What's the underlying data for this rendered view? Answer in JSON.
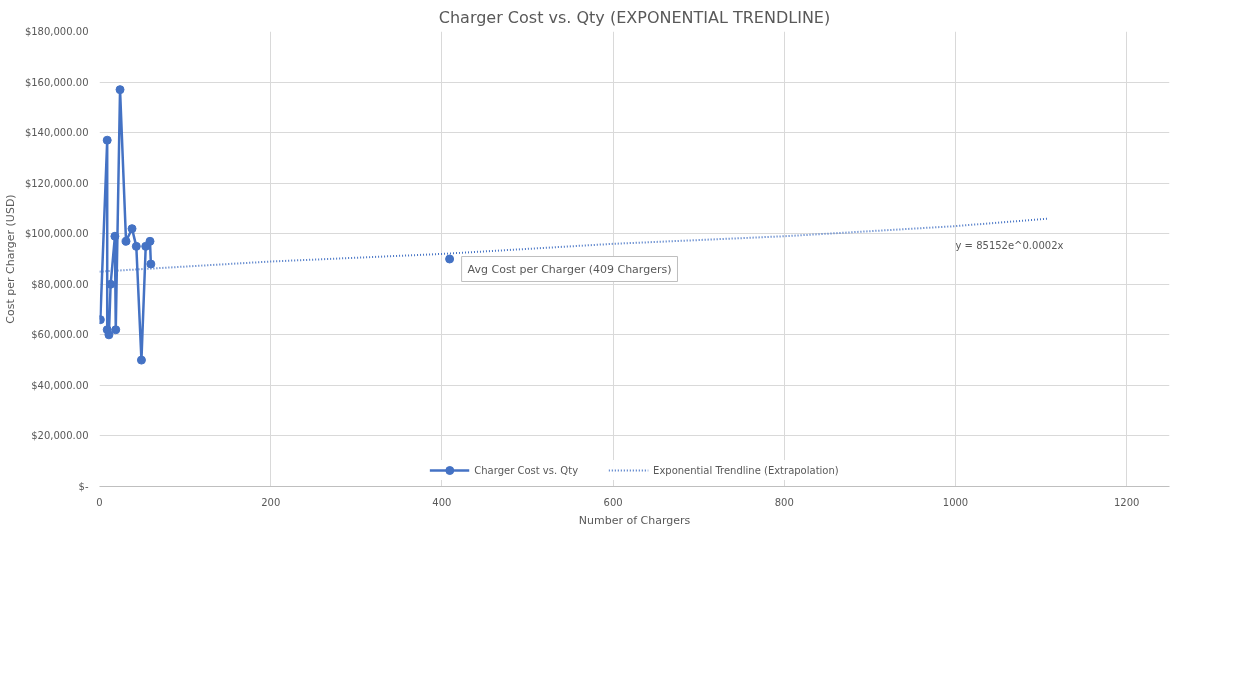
{
  "chart_data": {
    "type": "line",
    "title": "Charger Cost vs. Qty (EXPONENTIAL TRENDLINE)",
    "xlabel": "Number of Chargers",
    "ylabel": "Cost per Charger (USD)",
    "series": [
      {
        "name": "Charger Cost vs. Qty",
        "color": "#4472c4",
        "marker": "circle",
        "line_style": "solid",
        "x": [
          1,
          9,
          9,
          11,
          13,
          18,
          19,
          24,
          31,
          38,
          43,
          49,
          54,
          59,
          60
        ],
        "values": [
          66000,
          137000,
          62000,
          60000,
          80000,
          99000,
          62000,
          157000,
          97000,
          102000,
          95000,
          50000,
          95000,
          97000,
          88000
        ]
      },
      {
        "type": "scatter",
        "color": "#4472c4",
        "marker": "circle",
        "x": [
          409
        ],
        "values": [
          90000
        ]
      },
      {
        "name": "Exponential Trendline (Extrapolation)",
        "color": "#4472c4",
        "marker": "none",
        "line_style": "dotted",
        "x": [
          0,
          200,
          400,
          600,
          800,
          1000,
          1109
        ],
        "values": [
          85000,
          89000,
          92000,
          96000,
          99000,
          103000,
          106000
        ]
      }
    ],
    "annotations": [
      {
        "text": "Avg Cost per Charger (409 Chargers)",
        "x": 409,
        "y": 90000
      },
      "y = 85152e^0.0002x"
    ],
    "xlim": [
      0,
      1250
    ],
    "xticks": [
      0,
      200,
      400,
      600,
      800,
      1000,
      1200
    ],
    "ylim": [
      0,
      180000
    ],
    "yticks": [
      {
        "value": 0,
        "label": "$-"
      },
      {
        "value": 20000,
        "label": "$20,000.00"
      },
      {
        "value": 40000,
        "label": "$40,000.00"
      },
      {
        "value": 60000,
        "label": "$60,000.00"
      },
      {
        "value": 80000,
        "label": "$80,000.00"
      },
      {
        "value": 100000,
        "label": "$100,000.00"
      },
      {
        "value": 120000,
        "label": "$120,000.00"
      },
      {
        "value": 140000,
        "label": "$140,000.00"
      },
      {
        "value": 160000,
        "label": "$160,000.00"
      },
      {
        "value": 180000,
        "label": "$180,000.00"
      }
    ],
    "grid": true,
    "legend": "bottom"
  }
}
